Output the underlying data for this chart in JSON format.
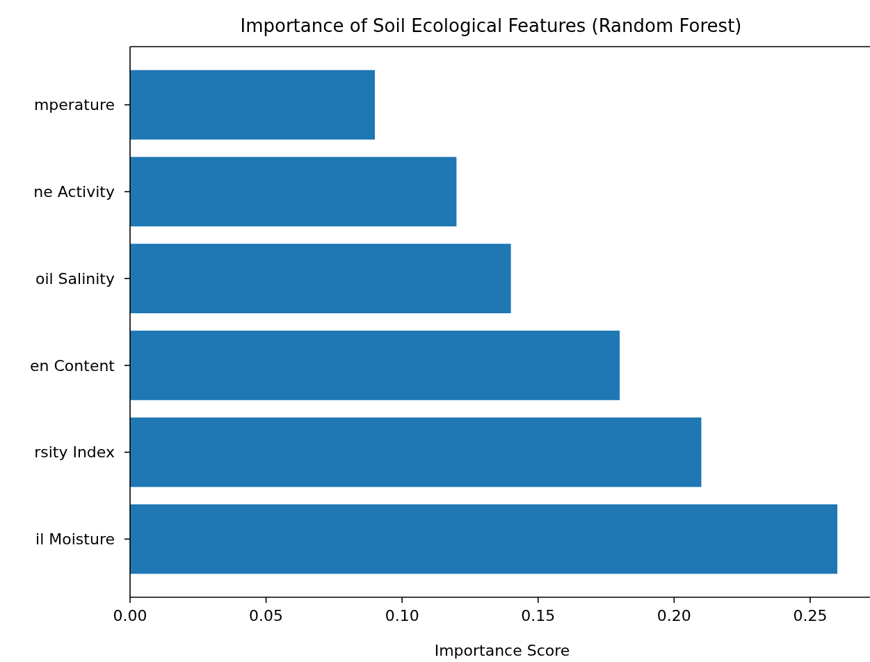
{
  "chart_data": {
    "type": "bar",
    "orientation": "horizontal",
    "title": "Importance of Soil Ecological Features (Random Forest)",
    "xlabel": "Importance Score",
    "categories": [
      "mperature",
      "ne Activity",
      "oil Salinity",
      "en Content",
      "rsity Index",
      "il Moisture"
    ],
    "values": [
      0.09,
      0.12,
      0.14,
      0.18,
      0.21,
      0.26
    ],
    "color": "#1f77b4",
    "xlim": [
      0,
      0.272
    ],
    "xticks": [
      {
        "value": 0,
        "label": "0.00"
      },
      {
        "value": 0.05,
        "label": "0.05"
      },
      {
        "value": 0.1,
        "label": "0.10"
      },
      {
        "value": 0.15,
        "label": "0.15"
      },
      {
        "value": 0.2,
        "label": "0.20"
      },
      {
        "value": 0.25,
        "label": "0.25"
      }
    ],
    "grid": false
  }
}
